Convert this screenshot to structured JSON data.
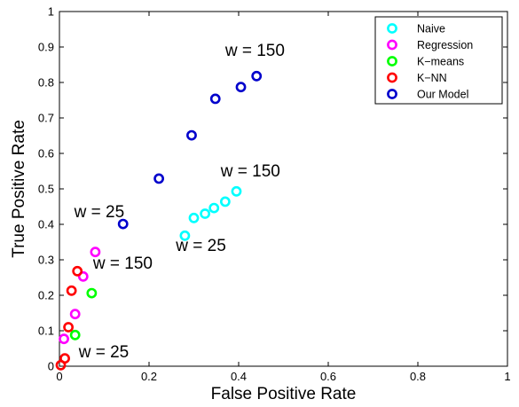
{
  "chart_data": {
    "type": "scatter",
    "xlabel": "False Positive Rate",
    "ylabel": "True Positive Rate",
    "xlim": [
      0,
      1
    ],
    "ylim": [
      0,
      1
    ],
    "xticks": [
      "0",
      "0.2",
      "0.4",
      "0.6",
      "0.8",
      "1"
    ],
    "yticks": [
      "0",
      "0.1",
      "0.2",
      "0.3",
      "0.4",
      "0.5",
      "0.6",
      "0.7",
      "0.8",
      "0.9",
      "1"
    ],
    "grid": false,
    "legend_position": "top-right",
    "marker": "open-circle",
    "series": [
      {
        "name": "Naive",
        "color": "#00ffff",
        "points": [
          [
            0.28,
            0.368
          ],
          [
            0.3,
            0.418
          ],
          [
            0.325,
            0.43
          ],
          [
            0.345,
            0.446
          ],
          [
            0.37,
            0.464
          ],
          [
            0.395,
            0.493
          ]
        ]
      },
      {
        "name": "Regression",
        "color": "#ff00ff",
        "points": [
          [
            0.01,
            0.077
          ],
          [
            0.035,
            0.147
          ],
          [
            0.053,
            0.253
          ],
          [
            0.08,
            0.322
          ]
        ]
      },
      {
        "name": "K−means",
        "color": "#00ff00",
        "points": [
          [
            0.035,
            0.088
          ],
          [
            0.072,
            0.206
          ]
        ]
      },
      {
        "name": "K−NN",
        "color": "#ff0000",
        "points": [
          [
            0.003,
            0.003
          ],
          [
            0.012,
            0.022
          ],
          [
            0.02,
            0.11
          ],
          [
            0.027,
            0.213
          ],
          [
            0.04,
            0.268
          ]
        ]
      },
      {
        "name": "Our Model",
        "color": "#0000cc",
        "points": [
          [
            0.142,
            0.401
          ],
          [
            0.222,
            0.529
          ],
          [
            0.295,
            0.651
          ],
          [
            0.348,
            0.754
          ],
          [
            0.405,
            0.787
          ],
          [
            0.44,
            0.818
          ]
        ]
      }
    ],
    "annotations": [
      {
        "text": "w = 150",
        "x": 0.37,
        "y": 0.875
      },
      {
        "text": "w = 150",
        "x": 0.36,
        "y": 0.535
      },
      {
        "text": "w = 25",
        "x": 0.033,
        "y": 0.42
      },
      {
        "text": "w = 25",
        "x": 0.26,
        "y": 0.325
      },
      {
        "text": "w = 150",
        "x": 0.075,
        "y": 0.275
      },
      {
        "text": "w = 25",
        "x": 0.043,
        "y": 0.025
      }
    ]
  }
}
